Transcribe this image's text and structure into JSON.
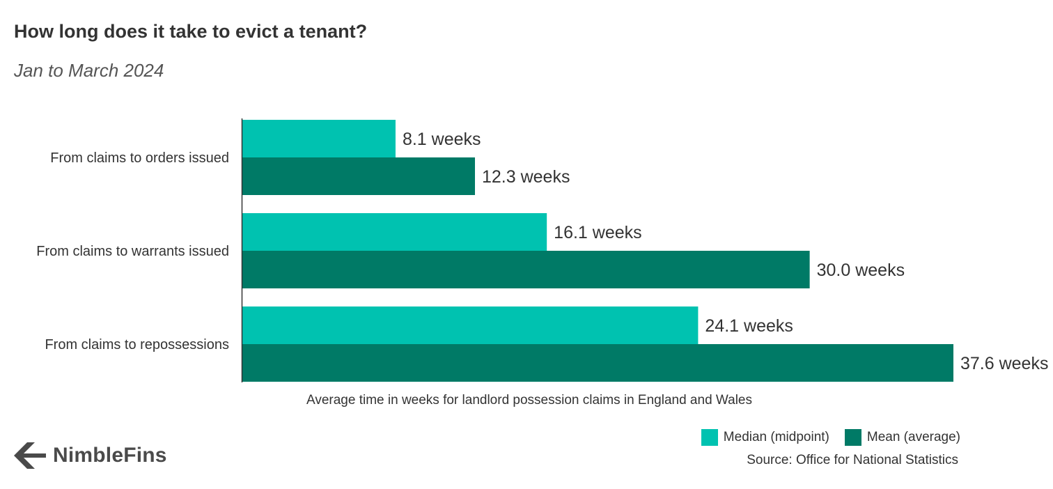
{
  "header": {
    "title": "How long does it take to evict a tenant?",
    "subtitle": "Jan to March 2024"
  },
  "footer": {
    "source": "Source: Office for National Statistics",
    "logo_text": "NimbleFins"
  },
  "colors": {
    "median": "#00c2b0",
    "mean": "#007a66",
    "axis": "#333333",
    "text": "#333333"
  },
  "chart_data": {
    "type": "bar",
    "orientation": "horizontal",
    "categories": [
      "From claims to orders issued",
      "From claims to warrants issued",
      "From claims to repossessions"
    ],
    "series": [
      {
        "name": "Median (midpoint)",
        "values": [
          8.1,
          16.1,
          24.1
        ],
        "labels": [
          "8.1 weeks",
          "16.1 weeks",
          "24.1 weeks"
        ],
        "color": "#00c2b0"
      },
      {
        "name": "Mean (average)",
        "values": [
          12.3,
          30.0,
          37.6
        ],
        "labels": [
          "12.3 weeks",
          "30.0 weeks",
          "37.6 weeks"
        ],
        "color": "#007a66"
      }
    ],
    "xlabel": "Average time in weeks for landlord possession claims in England and Wales",
    "xlim": [
      0,
      37.6
    ],
    "grid": false,
    "legend_position": "bottom-right"
  }
}
